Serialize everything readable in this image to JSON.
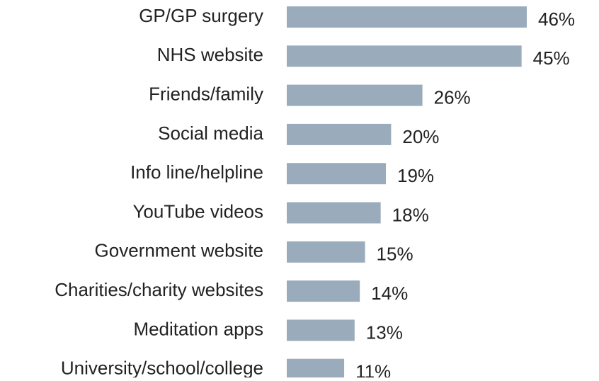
{
  "chart_data": {
    "type": "bar",
    "orientation": "horizontal",
    "categories": [
      "GP/GP surgery",
      "NHS website",
      "Friends/family",
      "Social media",
      "Info line/helpline",
      "YouTube videos",
      "Government website",
      "Charities/charity websites",
      "Meditation apps",
      "University/school/college"
    ],
    "values": [
      46,
      45,
      26,
      20,
      19,
      18,
      15,
      14,
      13,
      11
    ],
    "value_labels": [
      "46%",
      "45%",
      "26%",
      "20%",
      "19%",
      "18%",
      "15%",
      "14%",
      "13%",
      "11%"
    ],
    "color": "#9aabbc"
  }
}
